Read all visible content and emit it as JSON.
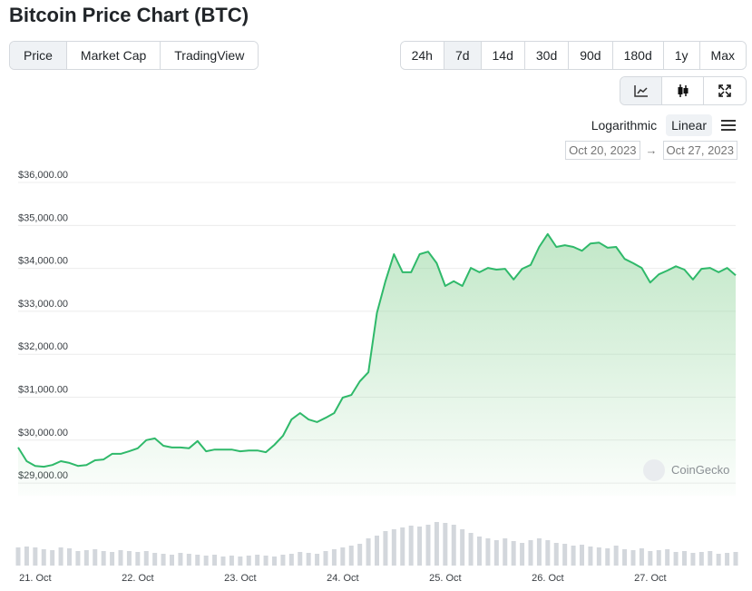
{
  "header": {
    "title": "Bitcoin Price Chart (BTC)"
  },
  "tabs": [
    "Price",
    "Market Cap",
    "TradingView"
  ],
  "ranges": [
    "24h",
    "7d",
    "14d",
    "30d",
    "90d",
    "180d",
    "1y",
    "Max"
  ],
  "scale_options": [
    "Logarithmic",
    "Linear"
  ],
  "date_range": {
    "from": "Oct 20, 2023",
    "arrow": "→",
    "to": "Oct 27, 2023"
  },
  "chart_data": {
    "type": "line",
    "watermark": "CoinGecko",
    "grid": true,
    "categories": [
      null,
      null,
      "21. Oct",
      null,
      null,
      null,
      null,
      null,
      null,
      null,
      null,
      null,
      null,
      null,
      "22. Oct",
      null,
      null,
      null,
      null,
      null,
      null,
      null,
      null,
      null,
      null,
      null,
      "23. Oct",
      null,
      null,
      null,
      null,
      null,
      null,
      null,
      null,
      null,
      null,
      null,
      "24. Oct",
      null,
      null,
      null,
      null,
      null,
      null,
      null,
      null,
      null,
      null,
      null,
      "25. Oct",
      null,
      null,
      null,
      null,
      null,
      null,
      null,
      null,
      null,
      null,
      null,
      "26. Oct",
      null,
      null,
      null,
      null,
      null,
      null,
      null,
      null,
      null,
      null,
      null,
      "27. Oct",
      null,
      null,
      null,
      null,
      null,
      null,
      null,
      null,
      null,
      null
    ],
    "series": [
      {
        "color": "#2fb96a",
        "values": [
          29830,
          29510,
          29400,
          29380,
          29420,
          29510,
          29470,
          29400,
          29420,
          29530,
          29550,
          29680,
          29680,
          29740,
          29810,
          30000,
          30040,
          29870,
          29830,
          29830,
          29810,
          29980,
          29740,
          29780,
          29780,
          29780,
          29740,
          29760,
          29760,
          29720,
          29890,
          30100,
          30480,
          30630,
          30480,
          30420,
          30520,
          30630,
          30990,
          31050,
          31370,
          31580,
          32960,
          33700,
          34330,
          33910,
          33910,
          34330,
          34390,
          34120,
          33590,
          33700,
          33590,
          34010,
          33910,
          34010,
          33970,
          33990,
          33740,
          33990,
          34080,
          34500,
          34800,
          34500,
          34540,
          34500,
          34410,
          34580,
          34600,
          34480,
          34500,
          34220,
          34120,
          34010,
          33670,
          33860,
          33950,
          34050,
          33970,
          33740,
          33990,
          34010,
          33910,
          34010,
          33840
        ]
      }
    ],
    "volume": [
      20,
      21,
      20,
      18,
      17,
      20,
      19,
      16,
      17,
      18,
      16,
      15,
      17,
      16,
      15,
      16,
      14,
      13,
      12,
      14,
      13,
      12,
      11,
      12,
      10,
      11,
      10,
      11,
      12,
      11,
      10,
      12,
      13,
      15,
      14,
      13,
      16,
      18,
      20,
      22,
      24,
      30,
      33,
      38,
      40,
      42,
      44,
      43,
      45,
      48,
      47,
      45,
      40,
      36,
      32,
      30,
      28,
      30,
      27,
      25,
      28,
      30,
      28,
      25,
      24,
      22,
      23,
      21,
      20,
      19,
      22,
      18,
      17,
      19,
      16,
      17,
      18,
      15,
      16,
      14,
      15,
      16,
      13,
      14,
      15
    ],
    "volume_color": "#d3d7dc",
    "ylim": [
      28700,
      36400
    ],
    "yticks": [
      {
        "value": 29000,
        "label": "$29,000.00"
      },
      {
        "value": 30000,
        "label": "$30,000.00"
      },
      {
        "value": 31000,
        "label": "$31,000.00"
      },
      {
        "value": 32000,
        "label": "$32,000.00"
      },
      {
        "value": 33000,
        "label": "$33,000.00"
      },
      {
        "value": 34000,
        "label": "$34,000.00"
      },
      {
        "value": 35000,
        "label": "$35,000.00"
      },
      {
        "value": 36000,
        "label": "$36,000.00"
      }
    ]
  }
}
